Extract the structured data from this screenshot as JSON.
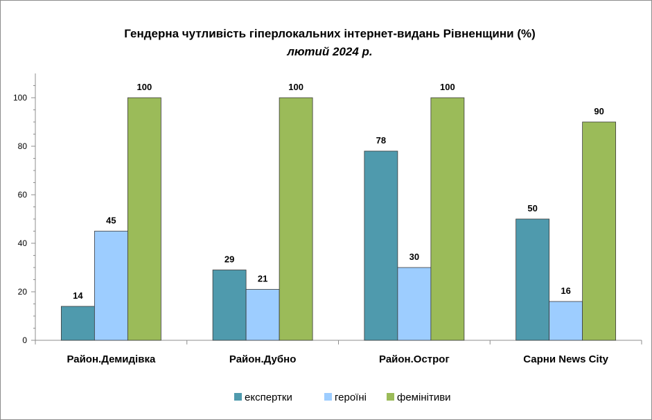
{
  "chart_data": {
    "type": "bar",
    "title": "Гендерна чутливість гіперлокальних інтернет-видань Рівненщини (%)",
    "subtitle": "лютий 2024 р.",
    "categories": [
      "Район.Демидівка",
      "Район.Дубно",
      "Район.Острог",
      "Сарни News City"
    ],
    "series": [
      {
        "name": "експертки",
        "color": "#4f9aad",
        "values": [
          14,
          29,
          78,
          50
        ]
      },
      {
        "name": "героїні",
        "color": "#9dcdff",
        "values": [
          45,
          21,
          30,
          16
        ]
      },
      {
        "name": "фемінітиви",
        "color": "#9bbb59",
        "values": [
          100,
          100,
          100,
          90
        ]
      }
    ],
    "ylim": [
      0,
      100
    ],
    "yticks": [
      0,
      20,
      40,
      60,
      80,
      100
    ],
    "grid": false,
    "legend_position": "bottom"
  }
}
